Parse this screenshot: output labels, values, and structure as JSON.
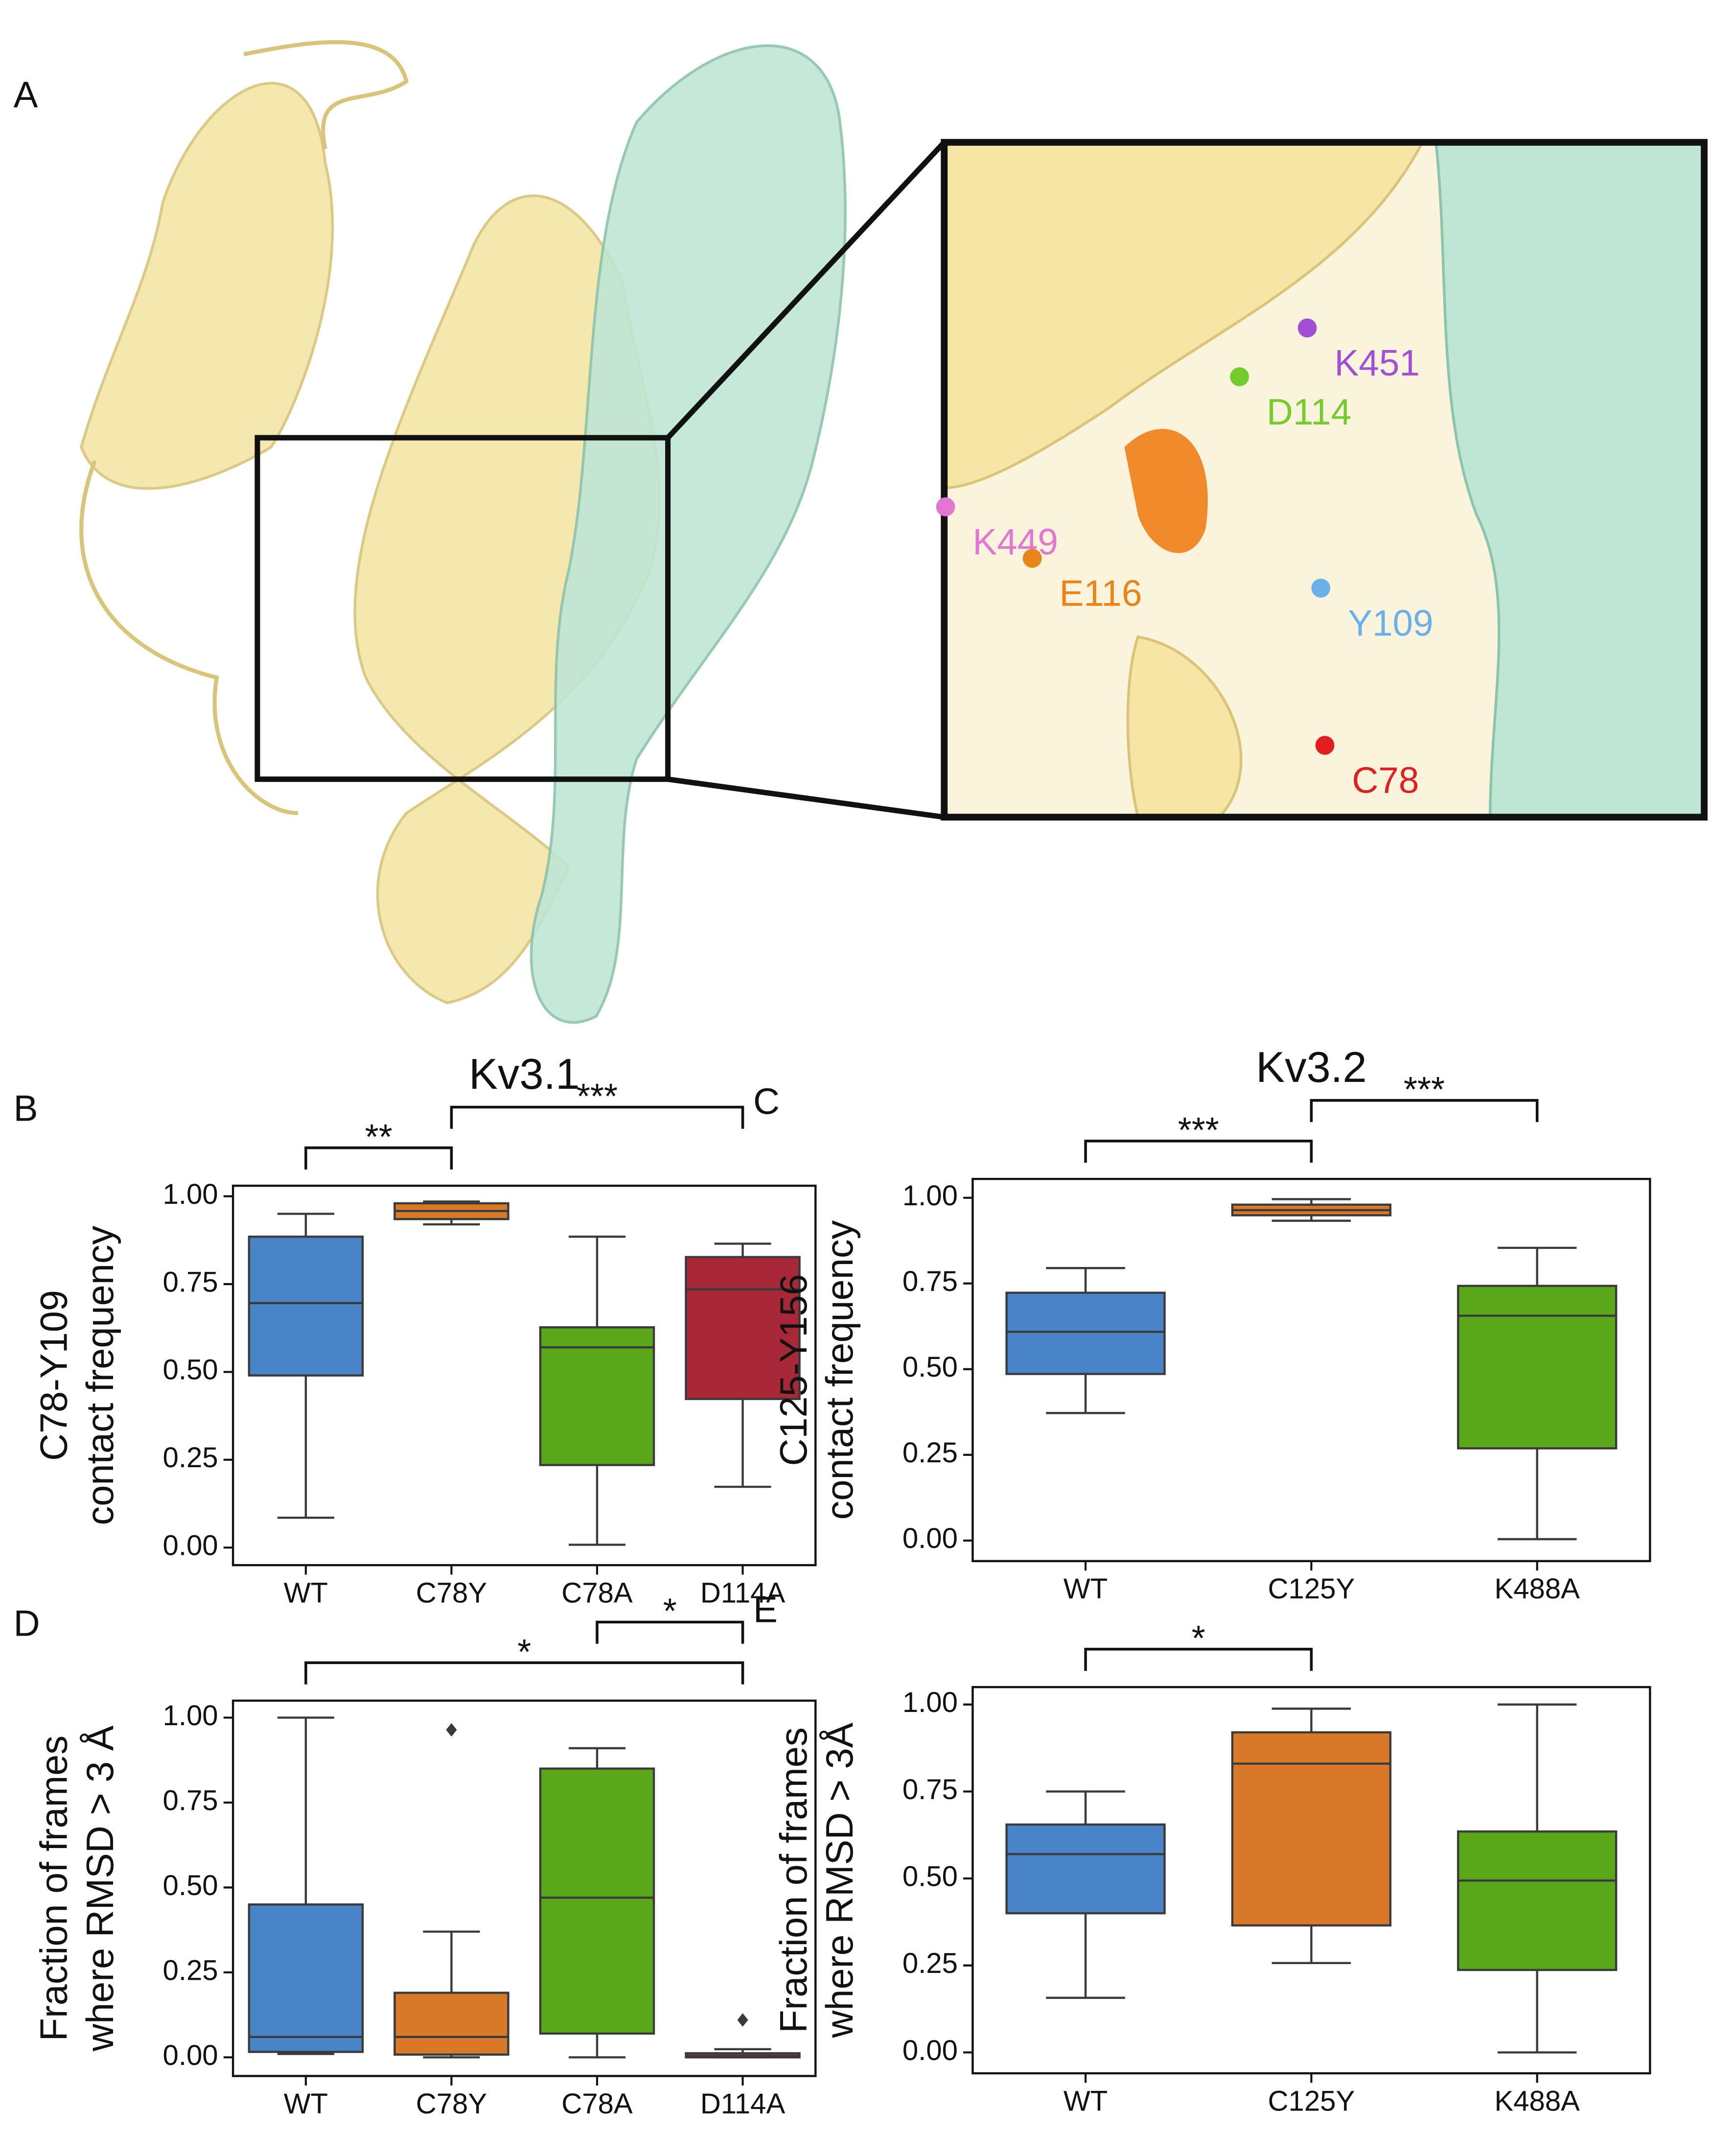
{
  "panel_a": {
    "panel": "A",
    "labels": [
      {
        "text": "K451",
        "color": "#a24fd6"
      },
      {
        "text": "D114",
        "color": "#74cc2c"
      },
      {
        "text": "K449",
        "color": "#e276d2"
      },
      {
        "text": "E116",
        "color": "#e8841a"
      },
      {
        "text": "Y109",
        "color": "#6cb0ea"
      },
      {
        "text": "C78",
        "color": "#e02020"
      }
    ]
  },
  "chart_data": [
    {
      "type": "box",
      "panel": "B",
      "title": "Kv3.1",
      "ylabel": [
        "C78-Y109",
        "contact frequency"
      ],
      "categories": [
        "WT",
        "C78Y",
        "C78A",
        "D114A"
      ],
      "boxes": [
        {
          "color": "#4a84c8",
          "min": 0.085,
          "q1": 0.49,
          "median": 0.696,
          "q3": 0.885,
          "max": 0.95,
          "outliers": []
        },
        {
          "color": "#d8792a",
          "min": 0.92,
          "q1": 0.935,
          "median": 0.958,
          "q3": 0.98,
          "max": 0.985,
          "outliers": []
        },
        {
          "color": "#5aa81a",
          "min": 0.008,
          "q1": 0.235,
          "median": 0.57,
          "q3": 0.627,
          "max": 0.885,
          "outliers": []
        },
        {
          "color": "#a82838",
          "min": 0.173,
          "q1": 0.423,
          "median": 0.735,
          "q3": 0.827,
          "max": 0.865,
          "outliers": []
        }
      ],
      "significance": [
        {
          "between": [
            "WT",
            "C78Y"
          ],
          "label": "**"
        },
        {
          "between": [
            "C78Y",
            "D114A"
          ],
          "label": "***"
        }
      ],
      "ylim": [
        -0.05,
        1.03
      ],
      "yticks": [
        {
          "value": 0,
          "label": "0.00"
        },
        0.25,
        {
          "value": 0.5,
          "label": "0.50"
        },
        0.75,
        {
          "value": 1,
          "label": "1.00"
        }
      ]
    },
    {
      "type": "box",
      "panel": "C",
      "title": "Kv3.2",
      "ylabel": [
        "C125-Y156",
        "contact frequency"
      ],
      "categories": [
        "WT",
        "C125Y",
        "K488A"
      ],
      "boxes": [
        {
          "color": "#4a84c8",
          "min": 0.372,
          "q1": 0.486,
          "median": 0.609,
          "q3": 0.723,
          "max": 0.795,
          "outliers": []
        },
        {
          "color": "#d8792a",
          "min": 0.933,
          "q1": 0.949,
          "median": 0.964,
          "q3": 0.98,
          "max": 0.996,
          "outliers": []
        },
        {
          "color": "#5aa81a",
          "min": 0.004,
          "q1": 0.269,
          "median": 0.656,
          "q3": 0.743,
          "max": 0.854,
          "outliers": []
        }
      ],
      "significance": [
        {
          "between": [
            "WT",
            "C125Y"
          ],
          "label": "***"
        },
        {
          "between": [
            "C125Y",
            "K488A"
          ],
          "label": "***"
        }
      ],
      "ylim": [
        -0.06,
        1.055
      ],
      "yticks": [
        {
          "value": 0,
          "label": "0.00"
        },
        0.25,
        {
          "value": 0.5,
          "label": "0.50"
        },
        0.75,
        {
          "value": 1,
          "label": "1.00"
        }
      ]
    },
    {
      "type": "box",
      "panel": "D",
      "ylabel": [
        "Fraction of frames",
        "where RMSD > 3 Å"
      ],
      "categories": [
        "WT",
        "C78Y",
        "C78A",
        "D114A"
      ],
      "boxes": [
        {
          "color": "#4a84c8",
          "min": 0.01,
          "q1": 0.016,
          "median": 0.06,
          "q3": 0.45,
          "max": 1.0,
          "outliers": []
        },
        {
          "color": "#d8792a",
          "min": 0,
          "q1": 0.008,
          "median": 0.06,
          "q3": 0.19,
          "max": 0.37,
          "outliers": [
            0.964
          ]
        },
        {
          "color": "#5aa81a",
          "min": 0,
          "q1": 0.07,
          "median": 0.47,
          "q3": 0.85,
          "max": 0.91,
          "outliers": []
        },
        {
          "color": "#a82838",
          "min": 0,
          "q1": 0,
          "median": 0.004,
          "q3": 0.012,
          "max": 0.024,
          "outliers": [
            0.11
          ]
        }
      ],
      "significance": [
        {
          "between": [
            "WT",
            "D114A"
          ],
          "label": "*"
        },
        {
          "between": [
            "C78A",
            "D114A"
          ],
          "label": "*"
        }
      ],
      "ylim": [
        -0.055,
        1.05
      ],
      "yticks": [
        {
          "value": 0,
          "label": "0.00"
        },
        0.25,
        {
          "value": 0.5,
          "label": "0.50"
        },
        0.75,
        {
          "value": 1,
          "label": "1.00"
        }
      ]
    },
    {
      "type": "box",
      "panel": "E",
      "ylabel": [
        "Fraction of frames",
        "where RMSD > 3Å"
      ],
      "categories": [
        "WT",
        "C125Y",
        "K488A"
      ],
      "boxes": [
        {
          "color": "#4a84c8",
          "min": 0.157,
          "q1": 0.4,
          "median": 0.57,
          "q3": 0.655,
          "max": 0.75,
          "outliers": []
        },
        {
          "color": "#d8792a",
          "min": 0.257,
          "q1": 0.365,
          "median": 0.83,
          "q3": 0.92,
          "max": 0.988,
          "outliers": []
        },
        {
          "color": "#5aa81a",
          "min": 0,
          "q1": 0.237,
          "median": 0.494,
          "q3": 0.635,
          "max": 1.0,
          "outliers": []
        }
      ],
      "significance": [
        {
          "between": [
            "WT",
            "C125Y"
          ],
          "label": "*"
        }
      ],
      "ylim": [
        -0.06,
        1.05
      ],
      "yticks": [
        {
          "value": 0,
          "label": "0.00"
        },
        0.25,
        {
          "value": 0.5,
          "label": "0.50"
        },
        0.75,
        {
          "value": 1,
          "label": "1.00"
        }
      ]
    }
  ]
}
